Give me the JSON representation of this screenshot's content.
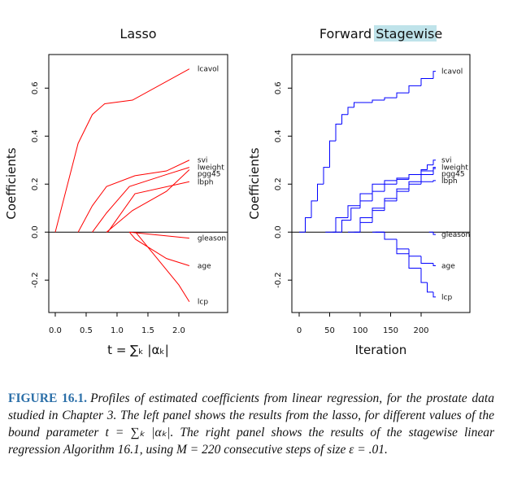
{
  "chart_data": [
    {
      "type": "line",
      "title": "Lasso",
      "xlabel": "t = ∑ₖ |αₖ|",
      "ylabel": "Coefficients",
      "color": "red",
      "xlim": [
        -0.105,
        2.79
      ],
      "ylim": [
        -0.335,
        0.74
      ],
      "xticks": [
        {
          "value": 0,
          "label": "0.0"
        },
        0.5,
        {
          "value": 1,
          "label": "1.0"
        },
        1.5,
        {
          "value": 2,
          "label": "2.0"
        }
      ],
      "yticks": [
        -0.2,
        {
          "value": 0,
          "label": "0.0"
        },
        0.2,
        0.4,
        0.6
      ],
      "series": [
        {
          "name": "lcavol",
          "x": [
            0,
            0.37,
            0.6,
            0.8,
            1.25,
            2.17
          ],
          "values": [
            0,
            0.37,
            0.49,
            0.535,
            0.55,
            0.68
          ]
        },
        {
          "name": "svi",
          "x": [
            0.37,
            0.6,
            0.83,
            1.29,
            1.8,
            2.17
          ],
          "values": [
            0,
            0.11,
            0.19,
            0.235,
            0.255,
            0.3
          ]
        },
        {
          "name": "lweight",
          "x": [
            0.6,
            0.83,
            1.2,
            1.8,
            2.17
          ],
          "values": [
            0,
            0.08,
            0.19,
            0.24,
            0.27
          ]
        },
        {
          "name": "pgg45",
          "x": [
            0.83,
            1.25,
            1.8,
            2.17
          ],
          "values": [
            0,
            0.09,
            0.17,
            0.26
          ]
        },
        {
          "name": "lbph",
          "x": [
            0.85,
            1.29,
            2.17
          ],
          "values": [
            0,
            0.16,
            0.21
          ]
        },
        {
          "name": "gleason",
          "x": [
            1.2,
            2.17
          ],
          "values": [
            0,
            -0.025
          ]
        },
        {
          "name": "age",
          "x": [
            1.2,
            1.3,
            1.8,
            2.17
          ],
          "values": [
            0,
            -0.03,
            -0.11,
            -0.14
          ]
        },
        {
          "name": "lcp",
          "x": [
            1.3,
            2.0,
            2.17
          ],
          "values": [
            0,
            -0.22,
            -0.29
          ]
        }
      ]
    },
    {
      "type": "line",
      "step": true,
      "title": "Forward Stagewise",
      "xlabel": "Iteration",
      "ylabel": "Coefficients",
      "color": "blue",
      "xlim": [
        -12,
        280
      ],
      "ylim": [
        -0.335,
        0.74
      ],
      "xticks": [
        0,
        50,
        100,
        150,
        200
      ],
      "yticks": [
        -0.2,
        {
          "value": 0,
          "label": "0.0"
        },
        0.2,
        0.4,
        0.6
      ],
      "series": [
        {
          "name": "lcavol",
          "x": [
            0,
            10,
            20,
            30,
            40,
            50,
            60,
            70,
            80,
            90,
            100,
            120,
            140,
            160,
            180,
            200,
            220
          ],
          "values": [
            0,
            0.06,
            0.13,
            0.2,
            0.27,
            0.38,
            0.45,
            0.49,
            0.52,
            0.54,
            0.54,
            0.55,
            0.56,
            0.58,
            0.61,
            0.64,
            0.67
          ]
        },
        {
          "name": "svi",
          "x": [
            43,
            60,
            80,
            100,
            120,
            140,
            160,
            180,
            200,
            210,
            220
          ],
          "values": [
            0,
            0.06,
            0.11,
            0.16,
            0.2,
            0.215,
            0.225,
            0.24,
            0.26,
            0.28,
            0.3
          ]
        },
        {
          "name": "lweight",
          "x": [
            55,
            70,
            85,
            100,
            120,
            140,
            160,
            180,
            200,
            220
          ],
          "values": [
            0,
            0.05,
            0.1,
            0.13,
            0.17,
            0.2,
            0.22,
            0.24,
            0.255,
            0.27
          ]
        },
        {
          "name": "pgg45",
          "x": [
            80,
            100,
            120,
            140,
            160,
            180,
            200,
            220
          ],
          "values": [
            0,
            0.06,
            0.1,
            0.14,
            0.18,
            0.21,
            0.24,
            0.265
          ]
        },
        {
          "name": "lbph",
          "x": [
            90,
            100,
            120,
            140,
            160,
            180,
            200,
            220
          ],
          "values": [
            0,
            0.04,
            0.09,
            0.13,
            0.17,
            0.2,
            0.21,
            0.215
          ]
        },
        {
          "name": "gleason",
          "x": [
            213,
            220
          ],
          "values": [
            0,
            -0.01
          ]
        },
        {
          "name": "age",
          "x": [
            120,
            140,
            160,
            180,
            200,
            220
          ],
          "values": [
            0,
            -0.03,
            -0.07,
            -0.1,
            -0.13,
            -0.14
          ]
        },
        {
          "name": "lcp",
          "x": [
            125,
            140,
            160,
            180,
            200,
            210,
            220
          ],
          "values": [
            0,
            -0.03,
            -0.09,
            -0.15,
            -0.21,
            -0.25,
            -0.27
          ]
        }
      ]
    }
  ],
  "caption": {
    "label": "FIGURE 16.1.",
    "text": "Profiles of estimated coefficients from linear regression, for the prostate data studied in Chapter 3. The left panel shows the results from the lasso, for different values of the bound parameter t = ∑ₖ |αₖ|. The right panel shows the results of the stagewise linear regression Algorithm 16.1, using M = 220 consecutive steps of size ε = .01."
  }
}
